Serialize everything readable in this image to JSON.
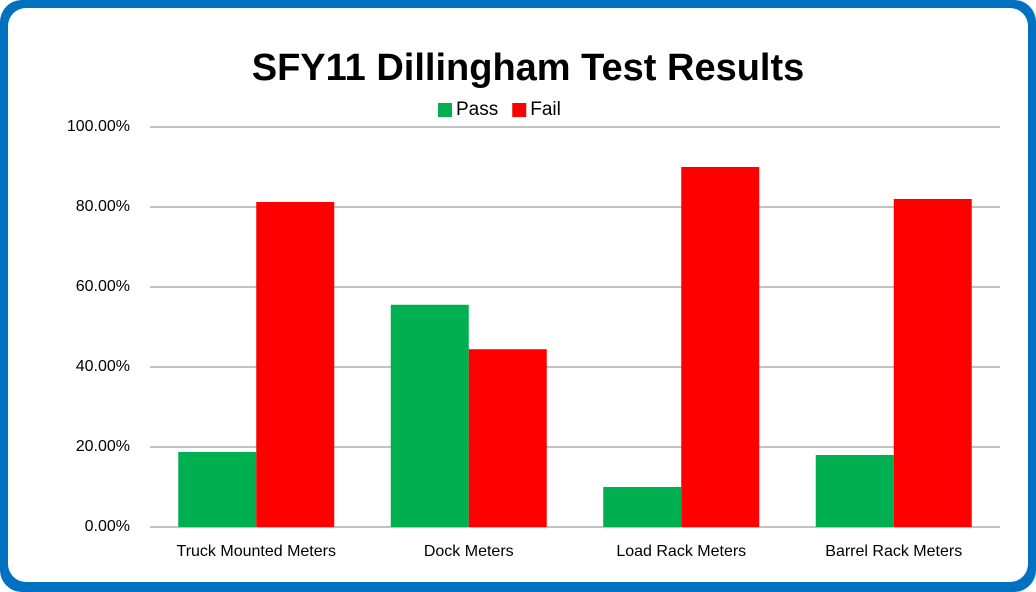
{
  "chart_data": {
    "type": "bar",
    "title": "SFY11 Dillingham Test Results",
    "categories": [
      "Truck Mounted Meters",
      "Dock Meters",
      "Load Rack Meters",
      "Barrel Rack Meters"
    ],
    "series": [
      {
        "name": "Pass",
        "color": "#00b050",
        "values": [
          18.75,
          55.56,
          10,
          18
        ]
      },
      {
        "name": "Fail",
        "color": "#ff0000",
        "values": [
          81.25,
          44.44,
          90,
          82
        ]
      }
    ],
    "ylim": [
      0,
      100
    ],
    "yticks": [
      {
        "value": 0,
        "label": "0.00%"
      },
      {
        "value": 20,
        "label": "20.00%"
      },
      {
        "value": 40,
        "label": "40.00%"
      },
      {
        "value": 60,
        "label": "60.00%"
      },
      {
        "value": 80,
        "label": "80.00%"
      },
      {
        "value": 100,
        "label": "100.00%"
      }
    ],
    "grid": true,
    "legend": "top"
  }
}
